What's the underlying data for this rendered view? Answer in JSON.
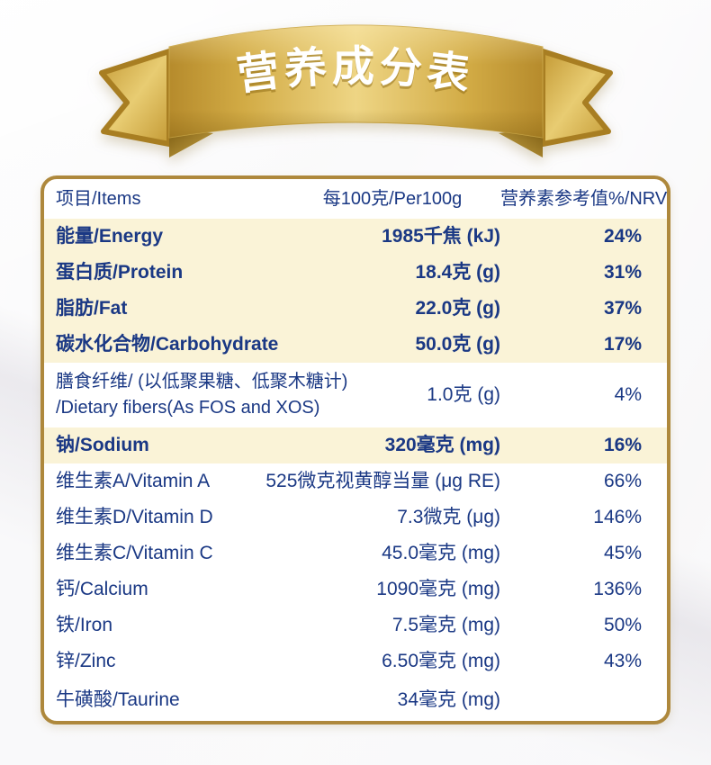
{
  "banner": {
    "title": "营养成分表",
    "colors": {
      "band_edge": "#b68b2c",
      "band_mid": "#d9b44e",
      "band_highlight": "#eed584",
      "tail_dark": "#a87e22",
      "tail_light": "#e8cc72",
      "fold_dark": "#7c5c12",
      "title_text": "#ffffff"
    }
  },
  "table": {
    "colors": {
      "border": "#ae883c",
      "highlight_row_bg": "#faf3d7",
      "text": "#1a3884"
    },
    "header": {
      "items": "项目/Items",
      "per100g": "每100克/Per100g",
      "nrv": "营养素参考值%/NRV%"
    },
    "rows": [
      {
        "label": "能量/Energy",
        "value": "1985千焦 (kJ)",
        "nrv": "24%",
        "bold": true,
        "highlight": true
      },
      {
        "label": "蛋白质/Protein",
        "value": "18.4克 (g)",
        "nrv": "31%",
        "bold": true,
        "highlight": true
      },
      {
        "label": "脂肪/Fat",
        "value": "22.0克 (g)",
        "nrv": "37%",
        "bold": true,
        "highlight": true
      },
      {
        "label": "碳水化合物/Carbohydrate",
        "value": "50.0克 (g)",
        "nrv": "17%",
        "bold": true,
        "highlight": true
      },
      {
        "label": "膳食纤维/ (以低聚果糖、低聚木糖计)",
        "label2": "/Dietary fibers(As FOS and XOS)",
        "value": "1.0克 (g)",
        "nrv": "4%",
        "bold": false,
        "highlight": false
      },
      {
        "label": "钠/Sodium",
        "value": "320毫克 (mg)",
        "nrv": "16%",
        "bold": true,
        "highlight": true
      },
      {
        "label": "维生素A/Vitamin A",
        "value": "525微克视黄醇当量 (μg RE)",
        "nrv": "66%",
        "bold": false,
        "highlight": false
      },
      {
        "label": "维生素D/Vitamin D",
        "value": "7.3微克 (μg)",
        "nrv": "146%",
        "bold": false,
        "highlight": false
      },
      {
        "label": "维生素C/Vitamin C",
        "value": "45.0毫克 (mg)",
        "nrv": "45%",
        "bold": false,
        "highlight": false
      },
      {
        "label": "钙/Calcium",
        "value": "1090毫克 (mg)",
        "nrv": "136%",
        "bold": false,
        "highlight": false
      },
      {
        "label": "铁/Iron",
        "value": "7.5毫克 (mg)",
        "nrv": "50%",
        "bold": false,
        "highlight": false
      },
      {
        "label": "锌/Zinc",
        "value": "6.50毫克 (mg)",
        "nrv": "43%",
        "bold": false,
        "highlight": false
      },
      {
        "label": "牛磺酸/Taurine",
        "value": "34毫克 (mg)",
        "nrv": "",
        "bold": false,
        "highlight": false
      }
    ]
  }
}
